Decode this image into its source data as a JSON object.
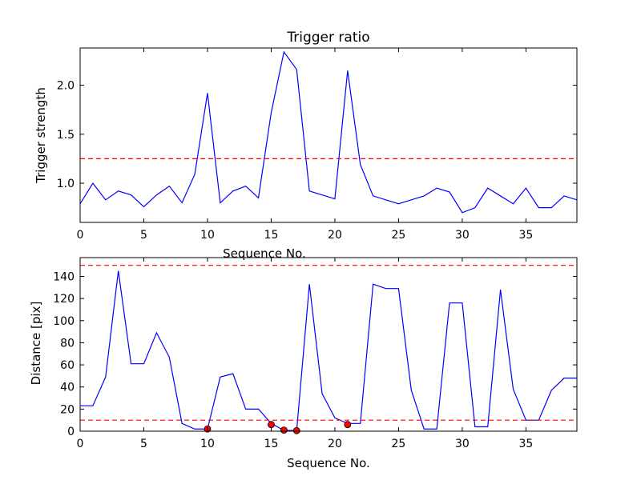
{
  "chart_data": [
    {
      "type": "line",
      "title": "Trigger ratio",
      "xlabel": "Sequence No.",
      "ylabel": "Trigger strength",
      "xlim": [
        0,
        39
      ],
      "ylim": [
        0.6,
        2.38
      ],
      "xticks": [
        0,
        5,
        10,
        15,
        20,
        25,
        30,
        35
      ],
      "yticks": [
        1.0,
        1.5,
        2.0
      ],
      "ytick_labels": [
        "1.0",
        "1.5",
        "2.0"
      ],
      "series": [
        {
          "color": "#0000ff",
          "x": [
            0,
            1,
            2,
            3,
            4,
            5,
            6,
            7,
            8,
            9,
            10,
            11,
            12,
            13,
            14,
            15,
            16,
            17,
            18,
            19,
            20,
            21,
            22,
            23,
            24,
            25,
            26,
            27,
            28,
            29,
            30,
            31,
            32,
            33,
            34,
            35,
            36,
            37,
            38,
            39
          ],
          "values": [
            0.79,
            1.0,
            0.83,
            0.92,
            0.88,
            0.76,
            0.88,
            0.97,
            0.8,
            1.09,
            1.92,
            0.8,
            0.92,
            0.97,
            0.85,
            1.72,
            2.34,
            2.16,
            0.92,
            0.88,
            0.84,
            2.15,
            1.19,
            0.87,
            0.83,
            0.79,
            0.83,
            0.87,
            0.95,
            0.91,
            0.7,
            0.75,
            0.95,
            0.87,
            0.79,
            0.95,
            0.75,
            0.75,
            0.87,
            0.83
          ]
        }
      ],
      "thresholds": [
        {
          "y": 1.25,
          "color": "#ff0000",
          "style": "dashed"
        }
      ],
      "grid": false
    },
    {
      "type": "line",
      "title": "",
      "xlabel": "Sequence No.",
      "ylabel": "Distance [pix]",
      "xlim": [
        0,
        39
      ],
      "ylim": [
        0,
        157
      ],
      "xticks": [
        0,
        5,
        10,
        15,
        20,
        25,
        30,
        35
      ],
      "yticks": [
        0,
        20,
        40,
        60,
        80,
        100,
        120,
        140
      ],
      "ytick_labels": [
        "0",
        "20",
        "40",
        "60",
        "80",
        "100",
        "120",
        "140"
      ],
      "series": [
        {
          "color": "#0000ff",
          "x": [
            0,
            1,
            2,
            3,
            4,
            5,
            6,
            7,
            8,
            9,
            10,
            11,
            12,
            13,
            14,
            15,
            16,
            17,
            18,
            19,
            20,
            21,
            22,
            23,
            24,
            25,
            26,
            27,
            28,
            29,
            30,
            31,
            32,
            33,
            34,
            35,
            36,
            37,
            38,
            39
          ],
          "values": [
            23,
            23,
            49,
            145,
            61,
            61,
            89,
            67,
            7,
            2,
            2,
            49,
            52,
            20,
            20,
            7,
            0.7,
            0.6,
            133,
            34,
            12,
            7,
            7,
            133,
            129,
            129,
            37,
            2,
            2,
            116,
            116,
            4,
            4,
            128,
            38,
            10,
            10,
            37,
            48,
            48
          ]
        }
      ],
      "markers": {
        "color": "#ff0000",
        "x": [
          10,
          15,
          16,
          17,
          21
        ],
        "values": [
          2,
          6,
          1,
          0.5,
          6
        ]
      },
      "thresholds": [
        {
          "y": 150,
          "color": "#ff0000",
          "style": "dashed"
        },
        {
          "y": 10,
          "color": "#ff0000",
          "style": "dashed"
        }
      ],
      "grid": false
    }
  ]
}
